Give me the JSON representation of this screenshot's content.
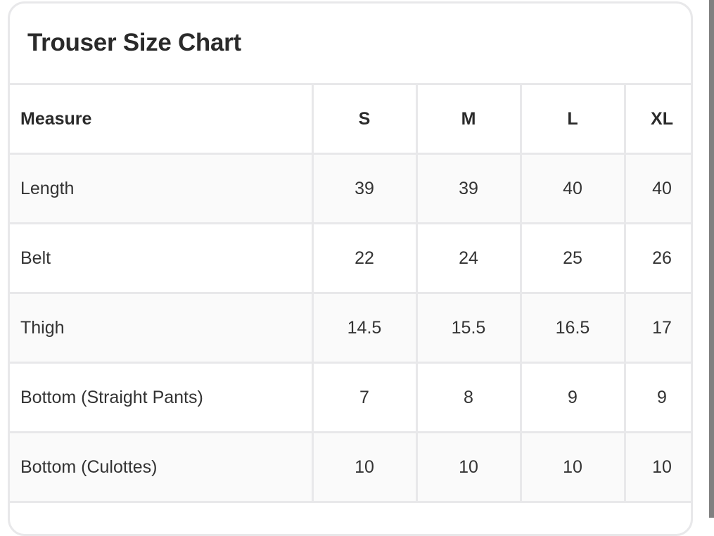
{
  "title": "Trouser Size Chart",
  "table": {
    "headers": [
      "Measure",
      "S",
      "M",
      "L",
      "XL"
    ],
    "rows": [
      [
        "Length",
        "39",
        "39",
        "40",
        "40"
      ],
      [
        "Belt",
        "22",
        "24",
        "25",
        "26"
      ],
      [
        "Thigh",
        "14.5",
        "15.5",
        "16.5",
        "17"
      ],
      [
        "Bottom (Straight Pants)",
        "7",
        "8",
        "9",
        "9"
      ],
      [
        "Bottom (Culottes)",
        "10",
        "10",
        "10",
        "10"
      ]
    ]
  }
}
